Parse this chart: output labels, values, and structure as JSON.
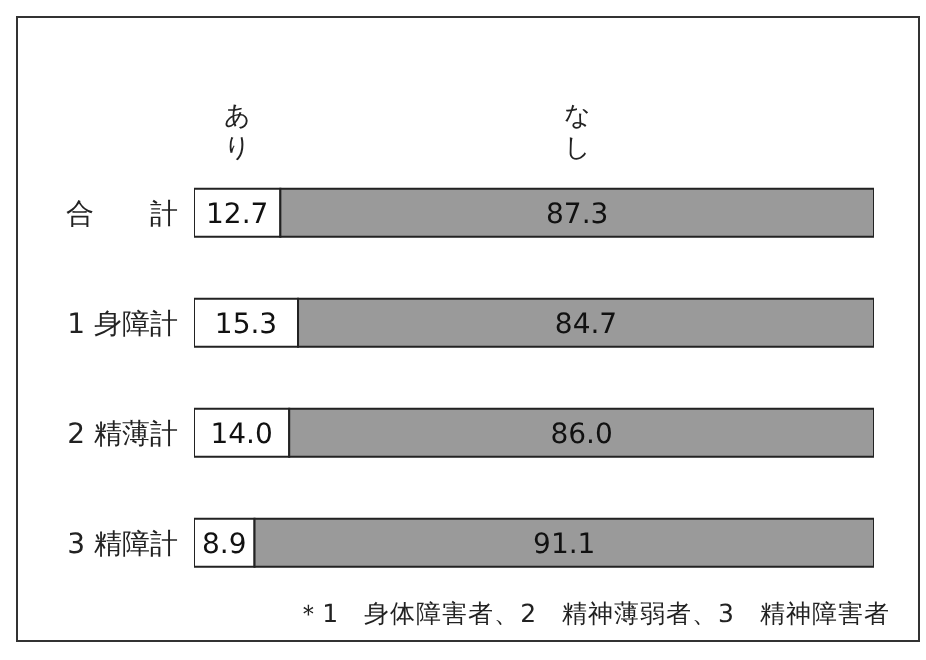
{
  "chart_data": {
    "type": "bar",
    "orientation": "horizontal",
    "stacked": true,
    "categories": [
      "合　　計",
      "1 身障計",
      "2 精薄計",
      "3 精障計"
    ],
    "series": [
      {
        "name": "あり",
        "color": "#ffffff",
        "values": [
          12.7,
          15.3,
          14.0,
          8.9
        ],
        "value_labels": [
          "12.7",
          "15.3",
          "14.0",
          "8.9"
        ]
      },
      {
        "name": "なし",
        "color": "#9a9a9a",
        "values": [
          87.3,
          84.7,
          86.0,
          91.1
        ],
        "value_labels": [
          "87.3",
          "84.7",
          "86.0",
          "91.1"
        ]
      }
    ],
    "xlim": [
      0,
      100
    ],
    "tick_labels": "y",
    "legend": "top",
    "annotations": [
      "＊1　身体障害者、2　精神薄弱者、3　精神障害者"
    ]
  }
}
